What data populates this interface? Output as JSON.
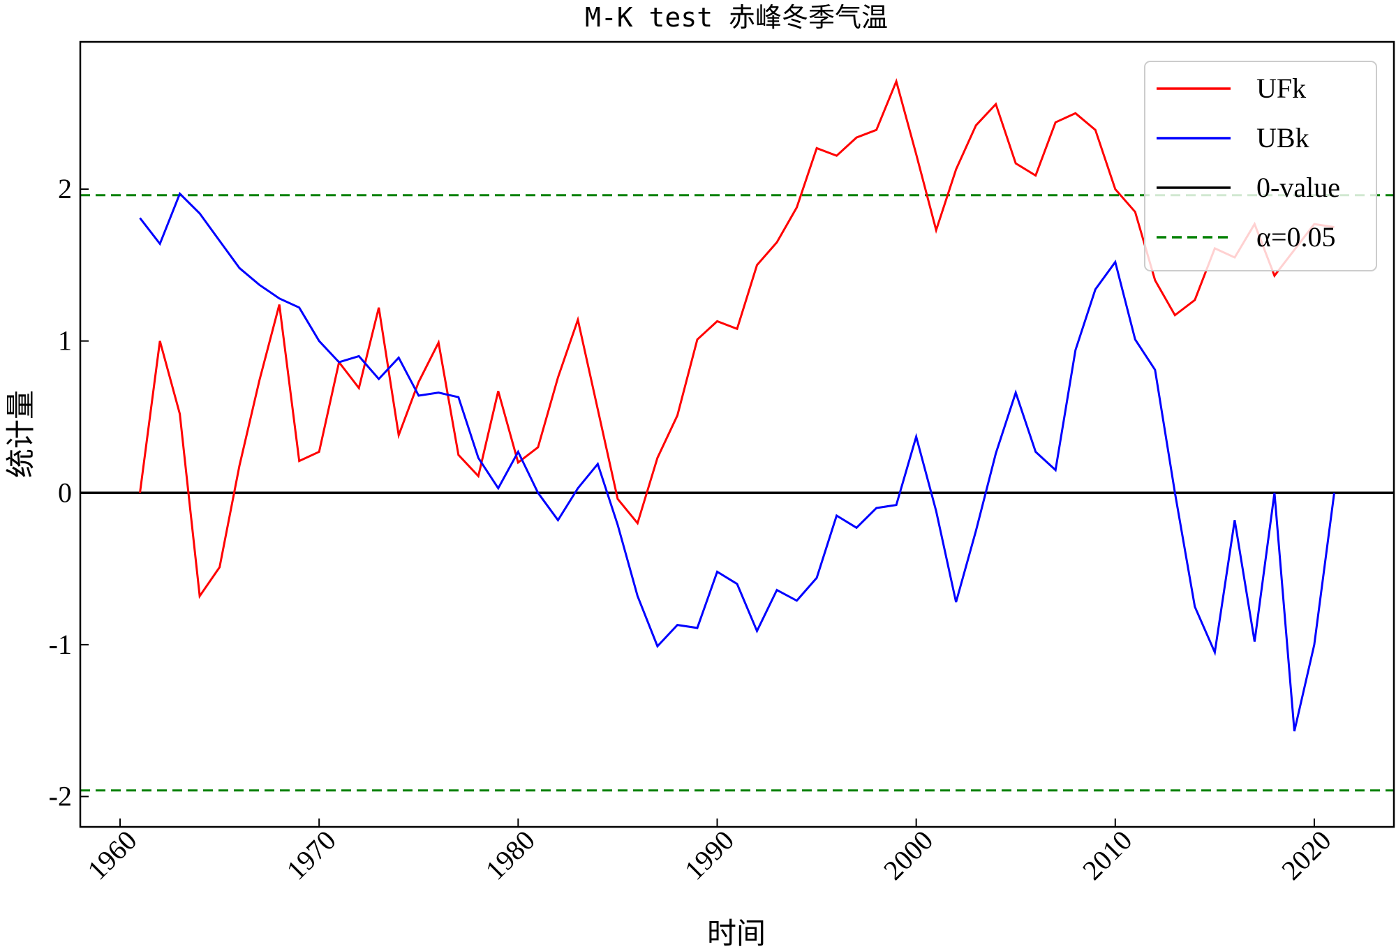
{
  "chart_data": {
    "type": "line",
    "title": "M-K test 赤峰冬季气温",
    "xlabel": "时间",
    "ylabel": "统计量",
    "xlim": [
      1958,
      2024
    ],
    "ylim": [
      -2.2,
      2.97
    ],
    "x_ticks": [
      1960,
      1970,
      1980,
      1990,
      2000,
      2010,
      2020
    ],
    "y_ticks": [
      -2,
      -1,
      0,
      1,
      2
    ],
    "x_tick_labels": [
      "1960",
      "1970",
      "1980",
      "1990",
      "2000",
      "2010",
      "2020"
    ],
    "y_tick_labels": [
      "-2",
      "-1",
      "0",
      "1",
      "2"
    ],
    "grid": false,
    "legend_position": "top-right",
    "x": [
      1961,
      1962,
      1963,
      1964,
      1965,
      1966,
      1967,
      1968,
      1969,
      1970,
      1971,
      1972,
      1973,
      1974,
      1975,
      1976,
      1977,
      1978,
      1979,
      1980,
      1981,
      1982,
      1983,
      1984,
      1985,
      1986,
      1987,
      1988,
      1989,
      1990,
      1991,
      1992,
      1993,
      1994,
      1995,
      1996,
      1997,
      1998,
      1999,
      2000,
      2001,
      2002,
      2003,
      2004,
      2005,
      2006,
      2007,
      2008,
      2009,
      2010,
      2011,
      2012,
      2013,
      2014,
      2015,
      2016,
      2017,
      2018,
      2019,
      2020,
      2021
    ],
    "series": [
      {
        "name": "UFk",
        "color": "#ff0000",
        "values": [
          0.0,
          1.0,
          0.52,
          -0.68,
          -0.49,
          0.18,
          0.74,
          1.24,
          0.21,
          0.27,
          0.86,
          0.69,
          1.22,
          0.38,
          0.73,
          0.99,
          0.25,
          0.11,
          0.67,
          0.2,
          0.3,
          0.76,
          1.14,
          0.55,
          -0.04,
          -0.2,
          0.23,
          0.51,
          1.01,
          1.13,
          1.08,
          1.5,
          1.65,
          1.88,
          2.27,
          2.22,
          2.34,
          2.39,
          2.71,
          2.23,
          1.73,
          2.13,
          2.42,
          2.56,
          2.17,
          2.09,
          2.44,
          2.5,
          2.39,
          2.0,
          1.85,
          1.4,
          1.17,
          1.27,
          1.61,
          1.55,
          1.77,
          1.43,
          1.6,
          1.77,
          1.75
        ]
      },
      {
        "name": "UBk",
        "color": "#0000ff",
        "values": [
          1.81,
          1.64,
          1.97,
          1.84,
          1.66,
          1.48,
          1.37,
          1.28,
          1.22,
          1.0,
          0.86,
          0.9,
          0.75,
          0.89,
          0.64,
          0.66,
          0.63,
          0.23,
          0.03,
          0.27,
          0.0,
          -0.18,
          0.03,
          0.19,
          -0.21,
          -0.68,
          -1.01,
          -0.87,
          -0.89,
          -0.52,
          -0.6,
          -0.91,
          -0.64,
          -0.71,
          -0.56,
          -0.15,
          -0.23,
          -0.1,
          -0.08,
          0.37,
          -0.12,
          -0.72,
          -0.25,
          0.26,
          0.66,
          0.27,
          0.15,
          0.94,
          1.34,
          1.52,
          1.01,
          0.81,
          0.0,
          -0.75,
          -1.05,
          -0.18,
          -0.98,
          0.0,
          -1.57,
          -1.0,
          0.0
        ]
      }
    ],
    "reference_lines": [
      {
        "name": "0-value",
        "y": 0,
        "color": "#000000",
        "style": "solid"
      },
      {
        "name": "α=0.05",
        "y": 1.96,
        "color": "#008000",
        "style": "dashed"
      },
      {
        "name": "",
        "y": -1.96,
        "color": "#008000",
        "style": "dashed"
      }
    ]
  }
}
